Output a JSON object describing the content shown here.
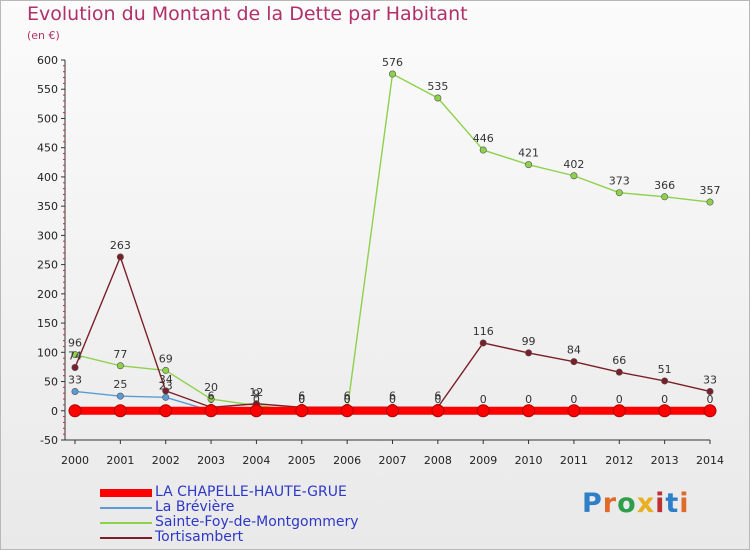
{
  "chart_data": {
    "type": "line",
    "title": "Evolution du Montant de la Dette par Habitant",
    "subtitle": "(en €)",
    "xlabel": "",
    "ylabel": "",
    "x": [
      "2000",
      "2001",
      "2002",
      "2003",
      "2004",
      "2005",
      "2006",
      "2007",
      "2008",
      "2009",
      "2010",
      "2011",
      "2012",
      "2013",
      "2014"
    ],
    "ylim": [
      -50,
      600
    ],
    "yticks": [
      "-50",
      "0",
      "50",
      "100",
      "150",
      "200",
      "250",
      "300",
      "350",
      "400",
      "450",
      "500",
      "550",
      "600"
    ],
    "grid": false,
    "legend_position": "bottom-left",
    "series": [
      {
        "name": "LA CHAPELLE-HAUTE-GRUE",
        "color": "#ff0000",
        "values": [
          0,
          0,
          0,
          0,
          0,
          0,
          0,
          0,
          0,
          0,
          0,
          0,
          0,
          0,
          0
        ],
        "labels": [
          "",
          "",
          "",
          "",
          "",
          "",
          "",
          "",
          "",
          "",
          "",
          "",
          "",
          "",
          ""
        ]
      },
      {
        "name": "La Brévière",
        "color": "#5b9bd5",
        "values": [
          33,
          25,
          23,
          0,
          0,
          0,
          0,
          0,
          0,
          0,
          0,
          0,
          0,
          0,
          0
        ],
        "labels": [
          "33",
          "25",
          "23",
          "0",
          "0",
          "0",
          "0",
          "0",
          "0",
          "0",
          "0",
          "0",
          "0",
          "0",
          "0"
        ]
      },
      {
        "name": "Sainte-Foy-de-Montgommery",
        "color": "#8ed14b",
        "values": [
          96,
          77,
          69,
          20,
          9,
          0,
          0,
          576,
          535,
          446,
          421,
          402,
          373,
          366,
          357
        ],
        "labels": [
          "96",
          "77",
          "69",
          "20",
          "9",
          "0",
          "0",
          "576",
          "535",
          "446",
          "421",
          "402",
          "373",
          "366",
          "357"
        ]
      },
      {
        "name": "Tortisambert",
        "color": "#7a1f28",
        "values": [
          74,
          263,
          34,
          6,
          12,
          6,
          6,
          6,
          6,
          116,
          99,
          84,
          66,
          51,
          33
        ],
        "labels": [
          "74",
          "263",
          "34",
          "6",
          "12",
          "6",
          "6",
          "6",
          "6",
          "116",
          "99",
          "84",
          "66",
          "51",
          "33"
        ]
      }
    ]
  },
  "logo": {
    "text": "Proxiti",
    "colors": [
      "#2e7fc7",
      "#e06a2a",
      "#2e9e4a",
      "#e8b020",
      "#c03030",
      "#2e7fc7",
      "#e06a2a"
    ]
  }
}
